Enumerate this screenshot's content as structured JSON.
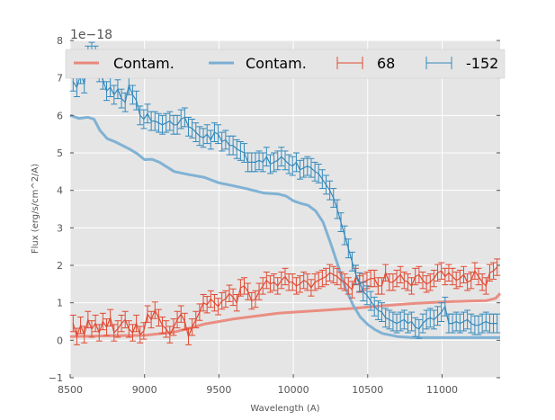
{
  "chart_data": {
    "type": "line",
    "title": "",
    "xlabel": "Wavelength (A)",
    "ylabel": "Flux (erg/s/cm^2/A)",
    "y_offset_label": "1e−18",
    "xlim": [
      8500,
      11390
    ],
    "ylim": [
      -1,
      8
    ],
    "grid": true,
    "x_ticks": [
      8500,
      9000,
      9500,
      10000,
      10500,
      11000
    ],
    "x_tick_labels": [
      "8500",
      "9000",
      "9500",
      "10000",
      "10500",
      "11000"
    ],
    "y_ticks": [
      -1,
      0,
      1,
      2,
      3,
      4,
      5,
      6,
      7,
      8
    ],
    "y_tick_labels": [
      "−1",
      "0",
      "1",
      "2",
      "3",
      "4",
      "5",
      "6",
      "7",
      "8"
    ],
    "legend_position": "top",
    "legend": [
      {
        "label": "Contam.",
        "kind": "line",
        "color": "#e9897c"
      },
      {
        "label": "Contam.",
        "kind": "line",
        "color": "#7aafd3"
      },
      {
        "label": "68",
        "kind": "errorbar",
        "color": "#e24a33"
      },
      {
        "label": "-152",
        "kind": "errorbar",
        "color": "#348abd"
      }
    ],
    "series": [
      {
        "name": "Contam. (68)",
        "kind": "line",
        "color": "#e9897c",
        "x": [
          8500,
          8800,
          9000,
          9200,
          9300,
          9400,
          9500,
          9600,
          9700,
          9800,
          9900,
          10000,
          10200,
          10400,
          10600,
          10800,
          11000,
          11200,
          11300,
          11360,
          11390
        ],
        "y": [
          0.1,
          0.12,
          0.13,
          0.22,
          0.32,
          0.43,
          0.5,
          0.57,
          0.62,
          0.67,
          0.72,
          0.75,
          0.8,
          0.85,
          0.92,
          0.98,
          1.02,
          1.05,
          1.06,
          1.12,
          1.25
        ]
      },
      {
        "name": "Contam. (-152)",
        "kind": "line",
        "color": "#7aafd3",
        "x": [
          8500,
          8560,
          8620,
          8660,
          8700,
          8750,
          8800,
          8900,
          8950,
          9000,
          9050,
          9100,
          9200,
          9300,
          9400,
          9500,
          9600,
          9700,
          9800,
          9900,
          9950,
          10000,
          10050,
          10100,
          10150,
          10200,
          10250,
          10300,
          10350,
          10400,
          10450,
          10500,
          10550,
          10600,
          10700,
          10800,
          11000,
          11390
        ],
        "y": [
          6.0,
          5.92,
          5.95,
          5.9,
          5.6,
          5.38,
          5.3,
          5.1,
          4.98,
          4.82,
          4.83,
          4.75,
          4.5,
          4.42,
          4.35,
          4.2,
          4.12,
          4.03,
          3.93,
          3.9,
          3.85,
          3.72,
          3.65,
          3.6,
          3.45,
          3.15,
          2.6,
          2.0,
          1.4,
          0.95,
          0.62,
          0.42,
          0.28,
          0.18,
          0.1,
          0.07,
          0.07,
          0.07
        ]
      },
      {
        "name": "68",
        "kind": "errorbar",
        "color": "#e24a33",
        "x": [
          8520,
          8545,
          8570,
          8595,
          8620,
          8645,
          8670,
          8695,
          8720,
          8745,
          8770,
          8795,
          8820,
          8845,
          8870,
          8895,
          8920,
          8945,
          8970,
          8995,
          9020,
          9045,
          9070,
          9095,
          9120,
          9145,
          9170,
          9195,
          9220,
          9245,
          9270,
          9295,
          9320,
          9345,
          9370,
          9395,
          9420,
          9445,
          9470,
          9495,
          9520,
          9545,
          9570,
          9595,
          9620,
          9645,
          9670,
          9695,
          9720,
          9745,
          9770,
          9795,
          9820,
          9845,
          9870,
          9895,
          9920,
          9945,
          9970,
          9995,
          10020,
          10045,
          10070,
          10095,
          10120,
          10145,
          10170,
          10195,
          10220,
          10245,
          10270,
          10295,
          10320,
          10345,
          10370,
          10395,
          10420,
          10445,
          10470,
          10495,
          10520,
          10545,
          10570,
          10595,
          10620,
          10645,
          10670,
          10695,
          10720,
          10745,
          10770,
          10795,
          10820,
          10845,
          10870,
          10895,
          10920,
          10945,
          10970,
          10995,
          11020,
          11045,
          11070,
          11095,
          11120,
          11145,
          11170,
          11195,
          11220,
          11245,
          11270,
          11295,
          11320,
          11345,
          11370
        ],
        "y": [
          0.45,
          0.1,
          0.4,
          0.15,
          0.55,
          0.3,
          0.45,
          0.2,
          0.5,
          0.35,
          0.6,
          0.2,
          0.3,
          0.45,
          0.55,
          0.3,
          0.2,
          0.45,
          0.15,
          0.25,
          0.7,
          0.55,
          0.8,
          0.6,
          0.4,
          0.3,
          0.15,
          0.35,
          0.55,
          0.7,
          0.5,
          0.1,
          0.35,
          0.55,
          0.75,
          1.0,
          0.95,
          1.1,
          1.0,
          0.9,
          1.05,
          1.1,
          1.25,
          1.15,
          1.0,
          1.4,
          1.45,
          1.3,
          1.05,
          1.1,
          1.3,
          1.45,
          1.6,
          1.5,
          1.55,
          1.45,
          1.6,
          1.7,
          1.55,
          1.55,
          1.45,
          1.5,
          1.6,
          1.55,
          1.4,
          1.55,
          1.6,
          1.65,
          1.7,
          1.8,
          1.75,
          1.7,
          1.6,
          1.55,
          1.45,
          1.35,
          1.7,
          1.5,
          1.55,
          1.6,
          1.65,
          1.65,
          1.45,
          1.45,
          1.8,
          1.55,
          1.55,
          1.65,
          1.75,
          1.6,
          1.55,
          1.45,
          1.7,
          1.75,
          1.6,
          1.5,
          1.55,
          1.65,
          1.8,
          1.85,
          1.7,
          1.8,
          1.7,
          1.6,
          1.65,
          1.75,
          1.55,
          1.6,
          1.85,
          1.7,
          1.55,
          1.45,
          1.8,
          1.85,
          1.95
        ],
        "yerr": 0.22
      },
      {
        "name": "-152",
        "kind": "errorbar",
        "color": "#348abd",
        "x": [
          8520,
          8545,
          8570,
          8595,
          8620,
          8645,
          8670,
          8695,
          8720,
          8745,
          8770,
          8795,
          8820,
          8845,
          8870,
          8895,
          8920,
          8945,
          8970,
          8995,
          9020,
          9045,
          9070,
          9095,
          9120,
          9145,
          9170,
          9195,
          9220,
          9245,
          9270,
          9295,
          9320,
          9345,
          9370,
          9395,
          9420,
          9445,
          9470,
          9495,
          9520,
          9545,
          9570,
          9595,
          9620,
          9645,
          9670,
          9695,
          9720,
          9745,
          9770,
          9795,
          9820,
          9845,
          9870,
          9895,
          9920,
          9945,
          9970,
          9995,
          10020,
          10045,
          10070,
          10095,
          10120,
          10145,
          10170,
          10195,
          10220,
          10245,
          10270,
          10295,
          10320,
          10345,
          10370,
          10395,
          10420,
          10445,
          10470,
          10495,
          10520,
          10545,
          10570,
          10595,
          10620,
          10645,
          10670,
          10695,
          10720,
          10745,
          10770,
          10795,
          10820,
          10845,
          10870,
          10895,
          10920,
          10945,
          10970,
          10995,
          11020,
          11045,
          11070,
          11095,
          11120,
          11145,
          11170,
          11195,
          11220,
          11245,
          11270,
          11295,
          11320,
          11345,
          11370
        ],
        "y": [
          6.9,
          6.75,
          7.1,
          6.85,
          7.6,
          7.7,
          7.6,
          7.15,
          6.95,
          6.65,
          6.75,
          6.55,
          6.7,
          6.45,
          6.35,
          6.8,
          6.55,
          6.4,
          6.0,
          5.9,
          6.05,
          5.85,
          5.85,
          5.8,
          5.75,
          5.8,
          5.85,
          5.75,
          5.75,
          5.9,
          5.95,
          5.7,
          5.65,
          5.55,
          5.45,
          5.4,
          5.5,
          5.35,
          5.55,
          5.5,
          5.3,
          5.35,
          5.2,
          5.2,
          5.1,
          5.05,
          5.0,
          4.75,
          4.75,
          4.75,
          4.8,
          4.75,
          4.9,
          4.7,
          4.75,
          4.8,
          4.9,
          4.8,
          4.7,
          4.65,
          4.75,
          4.55,
          4.6,
          4.65,
          4.6,
          4.5,
          4.45,
          4.3,
          4.15,
          4.0,
          3.8,
          3.5,
          3.15,
          2.8,
          2.45,
          2.1,
          1.75,
          1.55,
          1.3,
          1.2,
          1.05,
          0.9,
          0.8,
          0.75,
          0.6,
          0.55,
          0.5,
          0.45,
          0.5,
          0.55,
          0.45,
          0.5,
          0.35,
          0.3,
          0.45,
          0.55,
          0.6,
          0.55,
          0.65,
          0.75,
          0.9,
          0.45,
          0.45,
          0.5,
          0.45,
          0.5,
          0.55,
          0.45,
          0.4,
          0.4,
          0.45,
          0.5,
          0.45,
          0.45,
          0.45
        ],
        "yerr": 0.25
      }
    ]
  }
}
